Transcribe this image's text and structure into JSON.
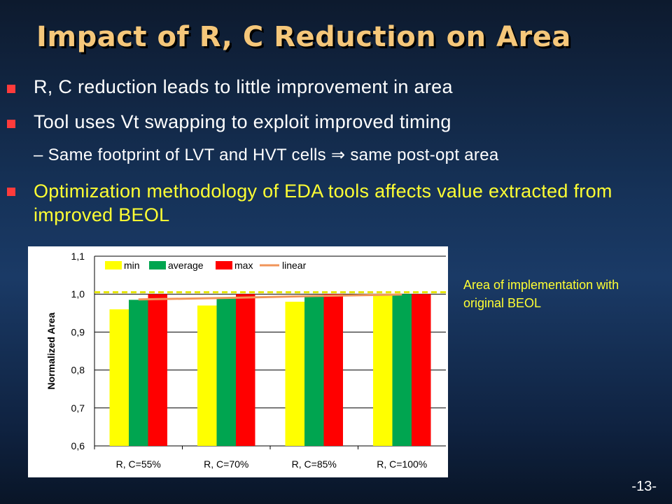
{
  "slide": {
    "title": "Impact of R, C Reduction on Area",
    "bullets": [
      "R, C reduction leads to little improvement in area",
      "Tool uses Vt swapping to exploit improved timing",
      "Optimization methodology of EDA tools affects value extracted from improved BEOL"
    ],
    "sub_bullet": "– Same footprint of LVT and HVT cells ⇒ same post-opt area",
    "annotation": "Area of implementation with original BEOL",
    "page_number": "-13-",
    "colors": {
      "title": "#f5c77a",
      "bullet_marker": "#ff3b3b",
      "highlight_text": "#ffff33"
    }
  },
  "chart_data": {
    "type": "bar",
    "ylabel": "Normalized Area",
    "xlabel": "",
    "ylim": [
      0.6,
      1.1
    ],
    "yticks": [
      "0,6",
      "0,7",
      "0,8",
      "0,9",
      "1,0",
      "1,1"
    ],
    "ytick_values": [
      0.6,
      0.7,
      0.8,
      0.9,
      1.0,
      1.1
    ],
    "categories": [
      "R, C=55%",
      "R, C=70%",
      "R, C=85%",
      "R, C=100%"
    ],
    "series": [
      {
        "name": "min",
        "values": [
          0.96,
          0.97,
          0.98,
          1.0
        ],
        "color": "#ffff00"
      },
      {
        "name": "average",
        "values": [
          0.985,
          0.99,
          0.995,
          1.0
        ],
        "color": "#00a550"
      },
      {
        "name": "max",
        "values": [
          1.0,
          1.0,
          1.0,
          1.0
        ],
        "color": "#ff0000"
      }
    ],
    "trend": {
      "name": "linear",
      "values": [
        0.986,
        0.99,
        0.995,
        0.999
      ],
      "color": "#f0955a"
    },
    "reference_line": {
      "value": 1.005,
      "color": "#ffff00",
      "style": "dashed"
    },
    "legend_position": "top-left",
    "grid": true,
    "background": "#ffffff"
  }
}
